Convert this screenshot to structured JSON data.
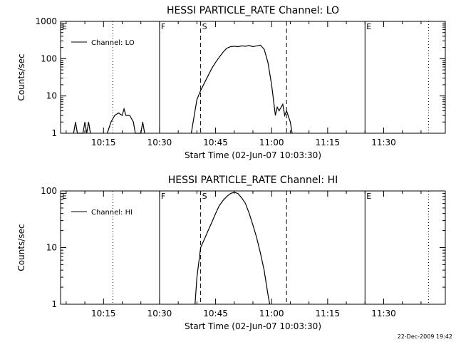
{
  "footer": {
    "timestamp": "22-Dec-2009 19:42"
  },
  "chart_data": [
    {
      "type": "line",
      "title": "HESSI PARTICLE_RATE Channel: LO",
      "xlabel": "Start Time (02-Jun-07 10:03:30)",
      "ylabel": "Counts/sec",
      "yscale": "log",
      "ylim": [
        1,
        1000
      ],
      "xlim": [
        "10:03:30",
        "11:46:30"
      ],
      "x_ticks": [
        "10:15",
        "10:30",
        "10:45",
        "11:00",
        "11:15",
        "11:30"
      ],
      "y_ticks": [
        "1",
        "10",
        "100",
        "1000"
      ],
      "legend": {
        "label": "Channel: LO",
        "position": "top-left"
      },
      "event_markers": [
        {
          "label": "E",
          "time": "10:03:30",
          "style": "solid"
        },
        {
          "label": "",
          "time": "10:17:30",
          "style": "dotted"
        },
        {
          "label": "F",
          "time": "10:30:00",
          "style": "solid"
        },
        {
          "label": "S",
          "time": "10:41:00",
          "style": "dashed"
        },
        {
          "label": "",
          "time": "11:04:00",
          "style": "dashed"
        },
        {
          "label": "E",
          "time": "11:25:00",
          "style": "solid"
        },
        {
          "label": "",
          "time": "11:42:00",
          "style": "dotted"
        }
      ],
      "series": [
        {
          "name": "Channel: LO",
          "points": [
            [
              "10:07:00",
              1
            ],
            [
              "10:07:30",
              2
            ],
            [
              "10:08:00",
              1
            ],
            [
              "10:09:30",
              1
            ],
            [
              "10:10:00",
              2
            ],
            [
              "10:10:30",
              1
            ],
            [
              "10:11:00",
              2
            ],
            [
              "10:11:30",
              1
            ],
            [
              "10:16:00",
              1
            ],
            [
              "10:17:00",
              2
            ],
            [
              "10:18:00",
              3
            ],
            [
              "10:19:00",
              3.5
            ],
            [
              "10:20:00",
              3
            ],
            [
              "10:20:30",
              4.5
            ],
            [
              "10:21:00",
              3
            ],
            [
              "10:22:00",
              3
            ],
            [
              "10:23:00",
              2
            ],
            [
              "10:23:30",
              1
            ],
            [
              "10:25:00",
              1
            ],
            [
              "10:25:30",
              2
            ],
            [
              "10:26:00",
              1
            ],
            [
              "10:38:30",
              1
            ],
            [
              "10:39:00",
              2
            ],
            [
              "10:40:00",
              8
            ],
            [
              "10:41:00",
              14
            ],
            [
              "10:42:00",
              22
            ],
            [
              "10:43:00",
              35
            ],
            [
              "10:44:00",
              55
            ],
            [
              "10:45:00",
              80
            ],
            [
              "10:46:00",
              110
            ],
            [
              "10:47:00",
              150
            ],
            [
              "10:48:00",
              190
            ],
            [
              "10:49:00",
              210
            ],
            [
              "10:50:00",
              215
            ],
            [
              "10:51:00",
              210
            ],
            [
              "10:52:00",
              220
            ],
            [
              "10:53:00",
              215
            ],
            [
              "10:54:00",
              225
            ],
            [
              "10:55:00",
              210
            ],
            [
              "10:56:00",
              220
            ],
            [
              "10:57:00",
              230
            ],
            [
              "10:58:00",
              180
            ],
            [
              "10:59:00",
              80
            ],
            [
              "11:00:00",
              20
            ],
            [
              "11:01:00",
              3
            ],
            [
              "11:01:30",
              5
            ],
            [
              "11:02:00",
              4
            ],
            [
              "11:03:00",
              6
            ],
            [
              "11:03:30",
              3
            ],
            [
              "11:04:00",
              4
            ],
            [
              "11:05:00",
              2
            ],
            [
              "11:05:30",
              1
            ]
          ]
        }
      ]
    },
    {
      "type": "line",
      "title": "HESSI PARTICLE_RATE Channel: HI",
      "xlabel": "Start Time (02-Jun-07 10:03:30)",
      "ylabel": "Counts/sec",
      "yscale": "log",
      "ylim": [
        1,
        100
      ],
      "xlim": [
        "10:03:30",
        "11:46:30"
      ],
      "x_ticks": [
        "10:15",
        "10:30",
        "10:45",
        "11:00",
        "11:15",
        "11:30"
      ],
      "y_ticks": [
        "1",
        "10",
        "100"
      ],
      "legend": {
        "label": "Channel: HI",
        "position": "top-left"
      },
      "event_markers": [
        {
          "label": "E",
          "time": "10:03:30",
          "style": "solid"
        },
        {
          "label": "",
          "time": "10:17:30",
          "style": "dotted"
        },
        {
          "label": "F",
          "time": "10:30:00",
          "style": "solid"
        },
        {
          "label": "S",
          "time": "10:41:00",
          "style": "dashed"
        },
        {
          "label": "",
          "time": "11:04:00",
          "style": "dashed"
        },
        {
          "label": "E",
          "time": "11:25:00",
          "style": "solid"
        },
        {
          "label": "",
          "time": "11:42:00",
          "style": "dotted"
        }
      ],
      "series": [
        {
          "name": "Channel: HI",
          "points": [
            [
              "10:39:30",
              1
            ],
            [
              "10:40:00",
              3
            ],
            [
              "10:41:00",
              10
            ],
            [
              "10:42:00",
              14
            ],
            [
              "10:43:00",
              20
            ],
            [
              "10:44:00",
              28
            ],
            [
              "10:45:00",
              40
            ],
            [
              "10:46:00",
              55
            ],
            [
              "10:47:00",
              68
            ],
            [
              "10:48:00",
              80
            ],
            [
              "10:49:00",
              90
            ],
            [
              "10:50:00",
              95
            ],
            [
              "10:51:00",
              90
            ],
            [
              "10:52:00",
              75
            ],
            [
              "10:53:00",
              60
            ],
            [
              "10:54:00",
              40
            ],
            [
              "10:55:00",
              25
            ],
            [
              "10:56:00",
              15
            ],
            [
              "10:57:00",
              8
            ],
            [
              "10:58:00",
              4
            ],
            [
              "10:59:00",
              1.5
            ],
            [
              "10:59:30",
              1
            ]
          ]
        }
      ]
    }
  ]
}
